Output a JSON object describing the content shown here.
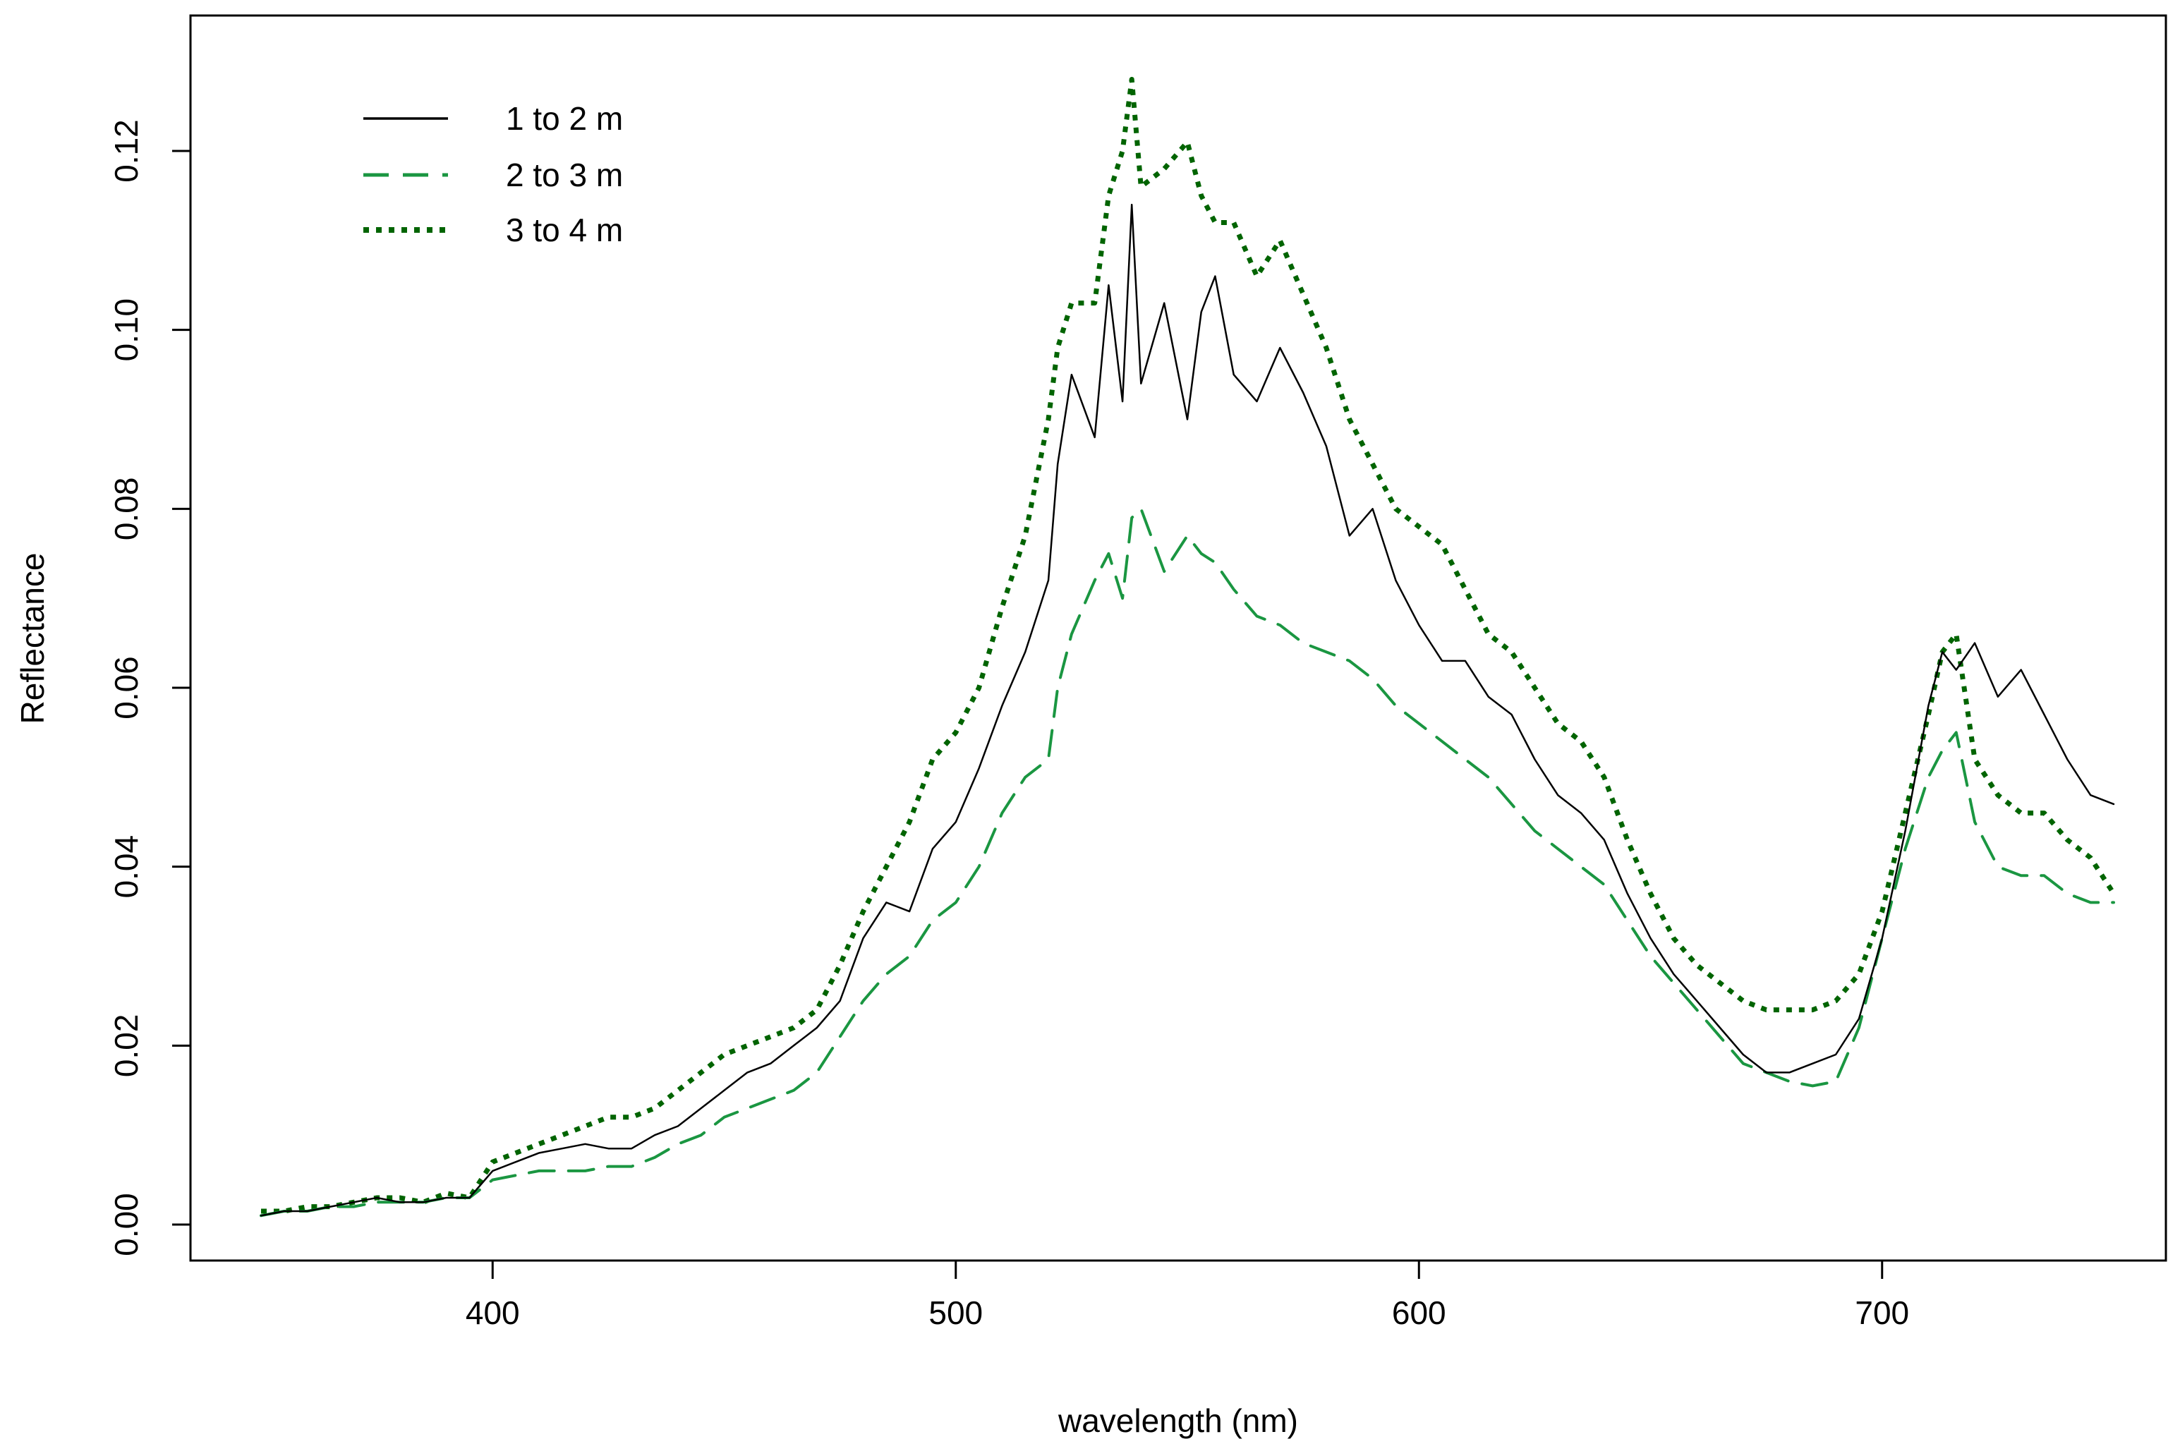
{
  "chart_data": {
    "type": "line",
    "title": "",
    "xlabel": "wavelength (nm)",
    "ylabel": "Reflectance",
    "xlim": [
      350,
      750
    ],
    "ylim": [
      0,
      0.12
    ],
    "xticks": [
      400,
      500,
      600,
      700
    ],
    "yticks": [
      0.0,
      0.02,
      0.04,
      0.06,
      0.08,
      0.1,
      0.12
    ],
    "ytick_labels": [
      "0.00",
      "0.02",
      "0.04",
      "0.06",
      "0.08",
      "0.10",
      "0.12"
    ],
    "grid": false,
    "legend_position": "top-left",
    "x": [
      350,
      355,
      360,
      365,
      370,
      375,
      380,
      385,
      390,
      395,
      400,
      405,
      410,
      415,
      420,
      425,
      430,
      435,
      440,
      445,
      450,
      455,
      460,
      465,
      470,
      475,
      480,
      485,
      490,
      495,
      500,
      505,
      510,
      515,
      520,
      522,
      525,
      530,
      533,
      536,
      538,
      540,
      545,
      550,
      553,
      556,
      560,
      565,
      570,
      575,
      580,
      585,
      590,
      595,
      600,
      605,
      610,
      615,
      620,
      625,
      630,
      635,
      640,
      645,
      650,
      655,
      660,
      665,
      670,
      675,
      680,
      685,
      690,
      695,
      700,
      705,
      710,
      713,
      716,
      720,
      725,
      730,
      735,
      740,
      745,
      750
    ],
    "series": [
      {
        "name": "1 to 2 m",
        "color": "#000000",
        "dash": "solid",
        "values": [
          0.001,
          0.0015,
          0.0015,
          0.002,
          0.0025,
          0.003,
          0.0025,
          0.0025,
          0.003,
          0.003,
          0.006,
          0.007,
          0.008,
          0.0085,
          0.009,
          0.0085,
          0.0085,
          0.01,
          0.011,
          0.013,
          0.015,
          0.017,
          0.018,
          0.02,
          0.022,
          0.025,
          0.032,
          0.036,
          0.035,
          0.042,
          0.045,
          0.051,
          0.058,
          0.064,
          0.072,
          0.085,
          0.095,
          0.088,
          0.105,
          0.092,
          0.114,
          0.094,
          0.103,
          0.09,
          0.102,
          0.106,
          0.095,
          0.092,
          0.098,
          0.093,
          0.087,
          0.077,
          0.08,
          0.072,
          0.067,
          0.063,
          0.063,
          0.059,
          0.057,
          0.052,
          0.048,
          0.046,
          0.043,
          0.037,
          0.032,
          0.028,
          0.025,
          0.022,
          0.019,
          0.017,
          0.017,
          0.018,
          0.019,
          0.023,
          0.032,
          0.044,
          0.058,
          0.064,
          0.062,
          0.065,
          0.059,
          0.062,
          0.057,
          0.052,
          0.048,
          0.047
        ]
      },
      {
        "name": "2 to 3 m",
        "color": "#1a9641",
        "dash": "long-dash",
        "values": [
          0.001,
          0.0015,
          0.0015,
          0.002,
          0.002,
          0.0025,
          0.0025,
          0.0025,
          0.003,
          0.003,
          0.005,
          0.0055,
          0.006,
          0.006,
          0.006,
          0.0065,
          0.0065,
          0.0075,
          0.009,
          0.01,
          0.012,
          0.013,
          0.014,
          0.015,
          0.017,
          0.021,
          0.025,
          0.028,
          0.03,
          0.034,
          0.036,
          0.04,
          0.046,
          0.05,
          0.052,
          0.06,
          0.066,
          0.072,
          0.075,
          0.07,
          0.079,
          0.08,
          0.073,
          0.077,
          0.075,
          0.074,
          0.071,
          0.068,
          0.067,
          0.065,
          0.064,
          0.063,
          0.061,
          0.058,
          0.056,
          0.054,
          0.052,
          0.05,
          0.047,
          0.044,
          0.042,
          0.04,
          0.038,
          0.034,
          0.03,
          0.027,
          0.024,
          0.021,
          0.018,
          0.017,
          0.016,
          0.0155,
          0.016,
          0.022,
          0.032,
          0.042,
          0.05,
          0.053,
          0.055,
          0.045,
          0.04,
          0.039,
          0.039,
          0.037,
          0.036,
          0.036
        ]
      },
      {
        "name": "3 to 4 m",
        "color": "#006400",
        "dash": "dotted",
        "values": [
          0.0015,
          0.0015,
          0.002,
          0.002,
          0.0025,
          0.003,
          0.003,
          0.0025,
          0.0035,
          0.003,
          0.007,
          0.008,
          0.009,
          0.01,
          0.011,
          0.012,
          0.012,
          0.013,
          0.015,
          0.017,
          0.019,
          0.02,
          0.021,
          0.022,
          0.024,
          0.029,
          0.035,
          0.04,
          0.045,
          0.052,
          0.055,
          0.06,
          0.069,
          0.077,
          0.09,
          0.098,
          0.103,
          0.103,
          0.115,
          0.12,
          0.128,
          0.116,
          0.118,
          0.121,
          0.115,
          0.112,
          0.112,
          0.106,
          0.11,
          0.104,
          0.098,
          0.09,
          0.085,
          0.08,
          0.078,
          0.076,
          0.071,
          0.066,
          0.064,
          0.06,
          0.056,
          0.054,
          0.05,
          0.043,
          0.037,
          0.032,
          0.029,
          0.027,
          0.025,
          0.024,
          0.024,
          0.024,
          0.025,
          0.028,
          0.035,
          0.046,
          0.057,
          0.064,
          0.066,
          0.052,
          0.048,
          0.046,
          0.046,
          0.043,
          0.041,
          0.037
        ]
      }
    ]
  }
}
